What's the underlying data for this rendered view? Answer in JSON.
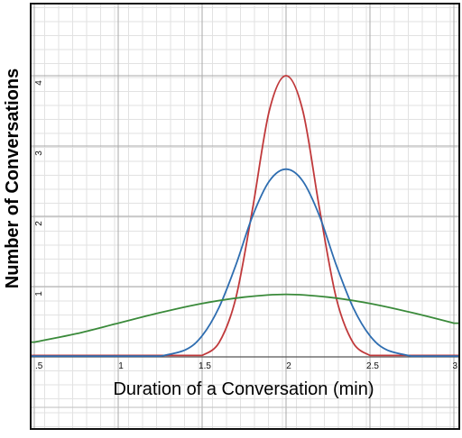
{
  "chart_data": {
    "type": "line",
    "title": "",
    "xlabel": "Duration of a Conversation (min)",
    "ylabel": "Number of Conversations",
    "xlim": [
      0.5,
      3.0
    ],
    "ylim": [
      0,
      4.4
    ],
    "grid": true,
    "x_ticks": [
      {
        "value": 0.5,
        "label": ".5"
      },
      {
        "value": 1.0,
        "label": "1"
      },
      {
        "value": 1.5,
        "label": "1.5"
      },
      {
        "value": 2.0,
        "label": "2"
      },
      {
        "value": 2.5,
        "label": "2.5"
      },
      {
        "value": 3.0,
        "label": "3"
      }
    ],
    "y_ticks": [
      {
        "value": 1,
        "label": "1"
      },
      {
        "value": 2,
        "label": "2"
      },
      {
        "value": 3,
        "label": "3"
      },
      {
        "value": 4,
        "label": "4"
      }
    ],
    "series": [
      {
        "color": "#c0393b",
        "x": [
          1.5,
          1.6,
          1.7,
          1.8,
          1.9,
          2.0,
          2.1,
          2.2,
          2.3,
          2.4,
          2.5
        ],
        "values": [
          0.02,
          0.2,
          0.83,
          2.1,
          3.5,
          4.0,
          3.5,
          2.1,
          0.83,
          0.2,
          0.02
        ]
      },
      {
        "color": "#2e6db0",
        "x": [
          1.25,
          1.4,
          1.5,
          1.6,
          1.7,
          1.8,
          1.9,
          2.0,
          2.1,
          2.2,
          2.3,
          2.4,
          2.5,
          2.6,
          2.75
        ],
        "values": [
          0.01,
          0.1,
          0.3,
          0.7,
          1.3,
          2.0,
          2.5,
          2.67,
          2.5,
          2.0,
          1.3,
          0.7,
          0.3,
          0.1,
          0.01
        ]
      },
      {
        "color": "#3a8a3a",
        "x": [
          0.5,
          0.75,
          1.0,
          1.25,
          1.5,
          1.75,
          2.0,
          2.25,
          2.5,
          2.75,
          3.0
        ],
        "values": [
          0.21,
          0.33,
          0.48,
          0.63,
          0.76,
          0.85,
          0.89,
          0.85,
          0.76,
          0.63,
          0.48
        ]
      }
    ]
  }
}
